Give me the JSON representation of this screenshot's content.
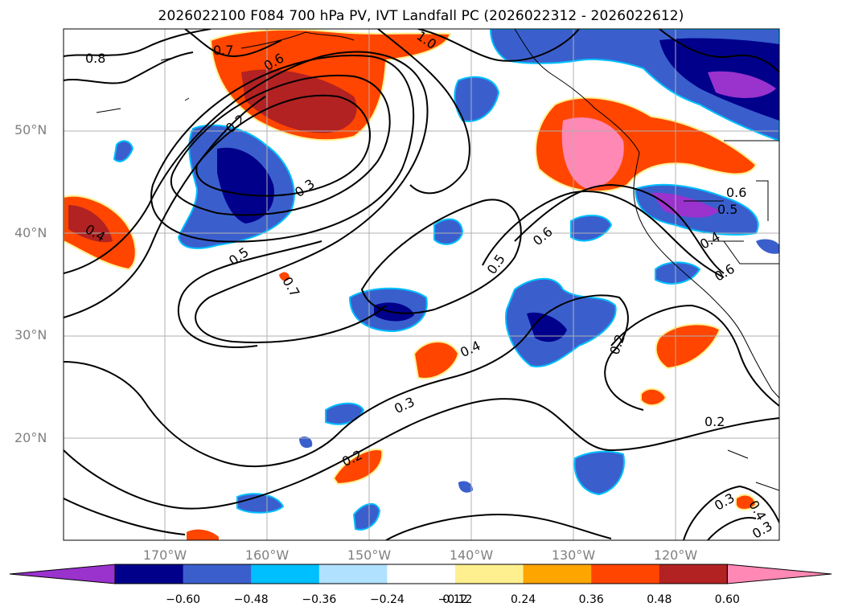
{
  "title": "2026022100 F084 700 hPa PV, IVT Landfall PC (2026022312 - 2026022612)",
  "map": {
    "lat_labels": [
      "50°N",
      "40°N",
      "30°N",
      "20°N"
    ],
    "lon_labels": [
      "170°W",
      "160°W",
      "150°W",
      "140°W",
      "130°W",
      "120°W"
    ],
    "gridlines": true
  },
  "contour_labels": [
    "0.8",
    "0.7",
    "0.6",
    "0.2",
    "0.3",
    "0.5",
    "0.4",
    "0.7",
    "1.0",
    "0.6",
    "0.5",
    "0.4",
    "0.3",
    "0.2",
    "0.2",
    "0.2",
    "0.6",
    "0.5",
    "0.4",
    "0.6",
    "0.3",
    "0.4",
    "0.3"
  ],
  "colorbar": {
    "tick_labels": [
      "−0.60",
      "−0.48",
      "−0.36",
      "−0.24",
      "−0.12",
      "0.12",
      "0.24",
      "0.36",
      "0.48",
      "0.60"
    ],
    "colors": [
      "#9a32cd",
      "#00008b",
      "#3a5fcd",
      "#00bfff",
      "#b0e2ff",
      "#ffffff",
      "#fff08f",
      "#ffa500",
      "#ff4500",
      "#b22222",
      "#ff88b4"
    ],
    "extend": "both"
  }
}
